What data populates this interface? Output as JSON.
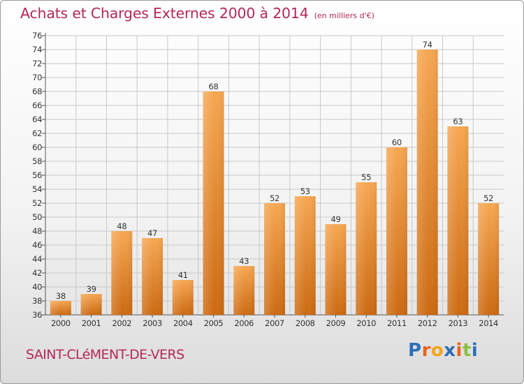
{
  "title": "Achats et Charges Externes 2000 à 2014",
  "unit": "(en milliers d'€)",
  "commune": "SAINT-CLéMENT-DE-VERS",
  "logo": {
    "text": "Proxiti",
    "letter_colors": [
      "#2e6fb8",
      "#e8631b",
      "#f2a51a",
      "#2e6fb8",
      "#e8631b",
      "#8ac043",
      "#2e6fb8"
    ]
  },
  "colors": {
    "title": "#b5275b",
    "bar_top": "#f6a752",
    "bar_bottom": "#cc6a12",
    "grid": "#c8c8c8"
  },
  "chart_data": {
    "type": "bar",
    "title": "Achats et Charges Externes 2000 à 2014",
    "subtitle": "(en milliers d'€)",
    "categories": [
      "2000",
      "2001",
      "2002",
      "2003",
      "2004",
      "2005",
      "2006",
      "2007",
      "2008",
      "2009",
      "2010",
      "2011",
      "2012",
      "2013",
      "2014"
    ],
    "values": [
      38,
      39,
      48,
      47,
      41,
      68,
      43,
      52,
      53,
      49,
      55,
      60,
      74,
      63,
      52
    ],
    "ylim": [
      36,
      76
    ],
    "ytick_step": 2,
    "grid": true,
    "data_labels": true
  }
}
